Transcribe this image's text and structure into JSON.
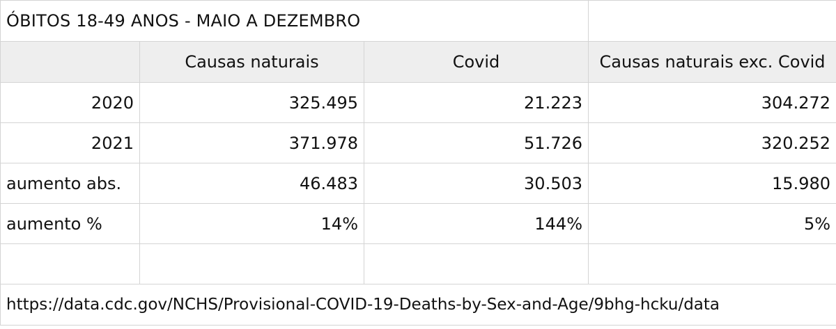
{
  "title": "ÓBITOS 18-49 ANOS - MAIO A DEZEMBRO",
  "headers": [
    "",
    "Causas naturais",
    "Covid",
    "Causas naturais exc. Covid"
  ],
  "rows": [
    {
      "label": "2020",
      "values": [
        "325.495",
        "21.223",
        "304.272"
      ]
    },
    {
      "label": "2021",
      "values": [
        "371.978",
        "51.726",
        "320.252"
      ]
    },
    {
      "label": "aumento abs.",
      "values": [
        "46.483",
        "30.503",
        "15.980"
      ]
    },
    {
      "label": "aumento %",
      "values": [
        "14%",
        "144%",
        "5%"
      ]
    }
  ],
  "source": "https://data.cdc.gov/NCHS/Provisional-COVID-19-Deaths-by-Sex-and-Age/9bhg-hcku/data"
}
